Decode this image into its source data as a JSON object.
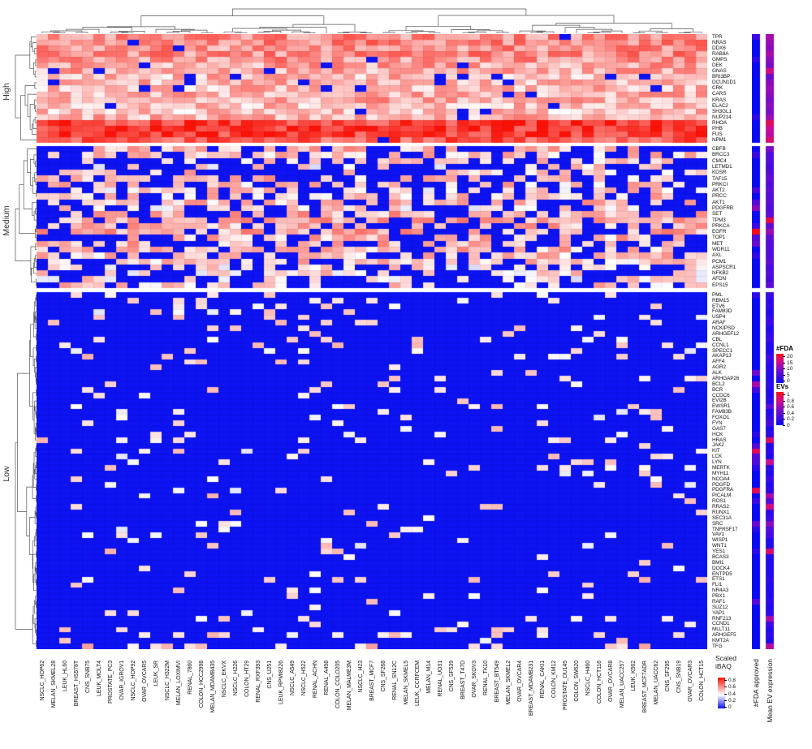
{
  "figure": {
    "description": "Clustered heatmap of scaled iBAQ protein expression across NCI-60 cell lines, rows split into High / Medium / Low expression groups, with per-gene annotations for number of FDA-approved drugs and mean EV expression"
  },
  "chart_data": {
    "type": "heatmap",
    "title": "",
    "value_name": "Scaled iBAQ",
    "columns": [
      "NSCLC_HOP62",
      "MELAN_SKMEL28",
      "LEUK_HL60",
      "BREAST_HS578T",
      "CNS_SNB75",
      "LEUK_MOLT4",
      "PROSTATE_PC3",
      "OVAR_IGROV1",
      "NSCLC_HOP92",
      "OVAR_OVCAR5",
      "LEUK_SR",
      "NSCLC_H322M",
      "MELAN_LOXIMVI",
      "RENAL_7860",
      "COLON_HCC2998",
      "MELAN_MDAMB435",
      "NSCLC_EKVX",
      "NSCLC_H226",
      "COLON_HT29",
      "RENAL_RXF393",
      "CNS_U251",
      "LEUK_RPMI8226",
      "NSCLC_A549",
      "NSCLC_H522",
      "RENAL_ACHN",
      "RENAL_A498",
      "COLON_COLO205",
      "MELAN_MALME3M",
      "NSCLC_H23",
      "BREAST_MCF7",
      "CNS_SF268",
      "RENAL_SN12C",
      "MELAN_SKMEL5",
      "LEUK_CCRFCEM",
      "MELAN_M14",
      "RENAL_UO31",
      "CNS_SF539",
      "BREAST_T47D",
      "OVAR_SKOV3",
      "RENAL_TK10",
      "BREAST_BT549",
      "MELAN_SKMEL2",
      "OVAR_OVCAR4",
      "BREAST_MDAMB231",
      "RENAL_CAKI1",
      "COLON_KM12",
      "PROSTATE_DU145",
      "COLON_SW620",
      "NSCLC_H460",
      "COLON_HCT116",
      "OVAR_OVCAR8",
      "MELAN_UACC257",
      "LEUK_K562",
      "BREAST_MCF7ADR",
      "MELAN_UACC62",
      "CNS_SF295",
      "CNS_SNB19",
      "OVAR_OVCAR3",
      "COLON_HCT15"
    ],
    "row_fields": [
      "gene",
      "typical_scaled_ibaq",
      "fraction_cells_at_min",
      "fda_approved_approx",
      "mean_ev_expression_approx"
    ],
    "row_groups": [
      {
        "name": "High",
        "rows": [
          [
            "TPR",
            0.7,
            0.02,
            4,
            0.6
          ],
          [
            "NRAS",
            0.72,
            0.02,
            0,
            0.55
          ],
          [
            "DDX6",
            0.68,
            0.02,
            0,
            0.5
          ],
          [
            "RAB8A",
            0.7,
            0.02,
            0,
            0.6
          ],
          [
            "GMPS",
            0.67,
            0.03,
            3,
            0.5
          ],
          [
            "DEK",
            0.63,
            0.05,
            0,
            0.45
          ],
          [
            "GNAS",
            0.62,
            0.06,
            0,
            0.75
          ],
          [
            "BRI3BP",
            0.58,
            0.04,
            0,
            0.4
          ],
          [
            "DCUN1D1",
            0.6,
            0.04,
            0,
            0.5
          ],
          [
            "CRK",
            0.58,
            0.04,
            0,
            0.55
          ],
          [
            "CARS",
            0.6,
            0.05,
            0,
            0.5
          ],
          [
            "KRAS",
            0.62,
            0.03,
            0,
            0.45
          ],
          [
            "ELAC2",
            0.58,
            0.05,
            0,
            0.5
          ],
          [
            "SH3GL1",
            0.57,
            0.05,
            0,
            0.45
          ],
          [
            "NUP214",
            0.6,
            0.03,
            3,
            0.55
          ],
          [
            "RHOA",
            0.88,
            0.01,
            0,
            0.85
          ],
          [
            "PHB",
            0.92,
            0.0,
            0,
            0.7
          ],
          [
            "FUS",
            0.9,
            0.0,
            0,
            0.65
          ],
          [
            "NPM1",
            0.82,
            0.01,
            0,
            0.8
          ]
        ]
      },
      {
        "name": "Medium",
        "rows": [
          [
            "CBFB",
            0.6,
            0.55,
            0,
            0.45
          ],
          [
            "BRCC3",
            0.55,
            0.5,
            4,
            0.3
          ],
          [
            "CMC4",
            0.55,
            0.55,
            0,
            0.3
          ],
          [
            "LETMD1",
            0.5,
            0.62,
            0,
            0.25
          ],
          [
            "KDSR",
            0.55,
            0.52,
            0,
            0.3
          ],
          [
            "TAF15",
            0.58,
            0.45,
            0,
            0.35
          ],
          [
            "PRKCI",
            0.55,
            0.5,
            0,
            0.3
          ],
          [
            "AKT2",
            0.52,
            0.55,
            5,
            0.35
          ],
          [
            "PRCC",
            0.55,
            0.5,
            0,
            0.3
          ],
          [
            "AKT1",
            0.58,
            0.45,
            6,
            0.35
          ],
          [
            "PDGFRB",
            0.52,
            0.55,
            10,
            0.3
          ],
          [
            "SET",
            0.6,
            0.4,
            0,
            0.35
          ],
          [
            "TPM3",
            0.62,
            0.35,
            0,
            0.9
          ],
          [
            "PRKCA",
            0.6,
            0.42,
            4,
            0.35
          ],
          [
            "EGFR",
            0.62,
            0.4,
            20,
            0.55
          ],
          [
            "TOP1",
            0.58,
            0.45,
            6,
            0.35
          ],
          [
            "MET",
            0.6,
            0.45,
            8,
            0.3
          ],
          [
            "WDR11",
            0.58,
            0.35,
            0,
            0.3
          ],
          [
            "AXL",
            0.56,
            0.45,
            3,
            0.3
          ],
          [
            "PCM1",
            0.55,
            0.4,
            0,
            0.35
          ],
          [
            "ASPSCR1",
            0.5,
            0.55,
            0,
            0.25
          ],
          [
            "NFKB2",
            0.52,
            0.5,
            0,
            0.3
          ],
          [
            "AFDN",
            0.5,
            0.5,
            0,
            0.25
          ],
          [
            "EPS15",
            0.55,
            0.45,
            0,
            0.35
          ]
        ]
      },
      {
        "name": "Low",
        "rows": [
          [
            "PML",
            0.5,
            0.85,
            3,
            0.2
          ],
          [
            "RBM15",
            0.5,
            0.88,
            0,
            0.15
          ],
          [
            "ETV6",
            0.5,
            0.88,
            0,
            0.15
          ],
          [
            "FAM83D",
            0.48,
            0.9,
            0,
            0.1
          ],
          [
            "USP4",
            0.5,
            0.87,
            0,
            0.15
          ],
          [
            "ARAF",
            0.5,
            0.88,
            0,
            0.2
          ],
          [
            "NCKIPSD",
            0.48,
            0.9,
            0,
            0.1
          ],
          [
            "ARHGEF12",
            0.48,
            0.9,
            0,
            0.15
          ],
          [
            "CBL",
            0.5,
            0.9,
            0,
            0.2
          ],
          [
            "CCNL1",
            0.5,
            0.88,
            0,
            0.1
          ],
          [
            "SPECC1",
            0.48,
            0.9,
            0,
            0.1
          ],
          [
            "AKAP13",
            0.5,
            0.88,
            0,
            0.2
          ],
          [
            "AFF4",
            0.48,
            0.92,
            0,
            0.15
          ],
          [
            "AGR2",
            0.52,
            0.93,
            0,
            0.1
          ],
          [
            "ALK",
            0.48,
            0.94,
            8,
            0.1
          ],
          [
            "ARHGAP26",
            0.48,
            0.93,
            0,
            0.1
          ],
          [
            "BCL2",
            0.48,
            0.94,
            12,
            0.15
          ],
          [
            "BCR",
            0.48,
            0.92,
            5,
            0.1
          ],
          [
            "CCDC6",
            0.48,
            0.93,
            0,
            0.1
          ],
          [
            "EVI2B",
            0.5,
            0.93,
            0,
            0.15
          ],
          [
            "EWSR1",
            0.5,
            0.9,
            0,
            0.35
          ],
          [
            "FAM83B",
            0.48,
            0.94,
            0,
            0.1
          ],
          [
            "FOXO1",
            0.48,
            0.92,
            0,
            0.15
          ],
          [
            "FYN",
            0.5,
            0.92,
            0,
            0.25
          ],
          [
            "GAS7",
            0.5,
            0.91,
            0,
            0.1
          ],
          [
            "HCK",
            0.48,
            0.93,
            3,
            0.15
          ],
          [
            "HRAS",
            0.5,
            0.92,
            0,
            0.8
          ],
          [
            "JAK2",
            0.48,
            0.94,
            6,
            0.1
          ],
          [
            "KIT",
            0.48,
            0.93,
            17,
            0.15
          ],
          [
            "LCK",
            0.48,
            0.94,
            6,
            0.1
          ],
          [
            "LYN",
            0.5,
            0.93,
            6,
            0.7
          ],
          [
            "MERTK",
            0.48,
            0.94,
            3,
            0.15
          ],
          [
            "MYH11",
            0.48,
            0.95,
            0,
            0.1
          ],
          [
            "NCOA4",
            0.48,
            0.93,
            0,
            0.2
          ],
          [
            "PDGFD",
            0.48,
            0.95,
            0,
            0.1
          ],
          [
            "PDGFRA",
            0.48,
            0.94,
            17,
            0.15
          ],
          [
            "PICALM",
            0.5,
            0.92,
            0,
            0.6
          ],
          [
            "ROS1",
            0.48,
            0.94,
            4,
            0.3
          ],
          [
            "RRAS2",
            0.5,
            0.93,
            0,
            0.75
          ],
          [
            "RUNX1",
            0.48,
            0.94,
            0,
            0.15
          ],
          [
            "SEC31A",
            0.5,
            0.92,
            0,
            0.2
          ],
          [
            "SRC",
            0.48,
            0.93,
            8,
            0.5
          ],
          [
            "TNFRSF17",
            0.48,
            0.94,
            3,
            0.3
          ],
          [
            "VAV1",
            0.48,
            0.94,
            0,
            0.25
          ],
          [
            "WISP1",
            0.48,
            0.95,
            0,
            0.1
          ],
          [
            "WNT1",
            0.48,
            0.95,
            0,
            0.1
          ],
          [
            "YES1",
            0.5,
            0.93,
            3,
            0.8
          ],
          [
            "BCAS3",
            0.48,
            0.94,
            0,
            0.1
          ],
          [
            "BMI1",
            0.48,
            0.94,
            0,
            0.1
          ],
          [
            "DOCK4",
            0.48,
            0.95,
            0,
            0.1
          ],
          [
            "ENTPD5",
            0.48,
            0.94,
            0,
            0.1
          ],
          [
            "ETS1",
            0.5,
            0.92,
            0,
            0.15
          ],
          [
            "FLI1",
            0.48,
            0.94,
            0,
            0.1
          ],
          [
            "NR4A3",
            0.48,
            0.95,
            0,
            0.1
          ],
          [
            "PBX1",
            0.48,
            0.94,
            0,
            0.1
          ],
          [
            "RAF1",
            0.5,
            0.93,
            6,
            0.15
          ],
          [
            "SUZ12",
            0.48,
            0.94,
            0,
            0.1
          ],
          [
            "YAP1",
            0.5,
            0.92,
            0,
            0.15
          ],
          [
            "RNF213",
            0.5,
            0.88,
            0,
            0.6
          ],
          [
            "CCND1",
            0.5,
            0.9,
            0,
            0.2
          ],
          [
            "MLLT11",
            0.5,
            0.88,
            0,
            0.1
          ],
          [
            "ARHGEF5",
            0.5,
            0.85,
            0,
            0.15
          ],
          [
            "KMT2A",
            0.48,
            0.92,
            0,
            0.1
          ],
          [
            "TFG",
            0.55,
            0.8,
            0,
            0.65
          ]
        ]
      }
    ],
    "annotations": {
      "headers": [
        "#FDA approved",
        "Mean EV expression"
      ]
    },
    "legends": {
      "main": {
        "title_lines": [
          "Scaled",
          "iBAQ"
        ],
        "ticks": [
          0.8,
          0.6,
          0.4,
          0.2,
          0
        ],
        "range": [
          0,
          0.9
        ]
      },
      "fda": {
        "title": "#FDA",
        "ticks": [
          20,
          15,
          10,
          5,
          0
        ],
        "range": [
          0,
          20
        ]
      },
      "evs": {
        "title": "EVs",
        "ticks": [
          1,
          0.8,
          0.6,
          0.4,
          0.2,
          0
        ],
        "range": [
          0,
          1
        ]
      }
    },
    "colors": {
      "scale_low": "#0d13f2",
      "scale_mid": "#ffffff",
      "scale_high": "#fb1207",
      "annotation_stops": [
        "#0909f2",
        "#6a0bd0",
        "#c90b97",
        "#f50b16"
      ],
      "dendrogram": "#555555"
    },
    "layout_hints": {
      "legend_position": "right",
      "grid": "faint",
      "row_groups_order": [
        "High",
        "Medium",
        "Low"
      ]
    }
  }
}
